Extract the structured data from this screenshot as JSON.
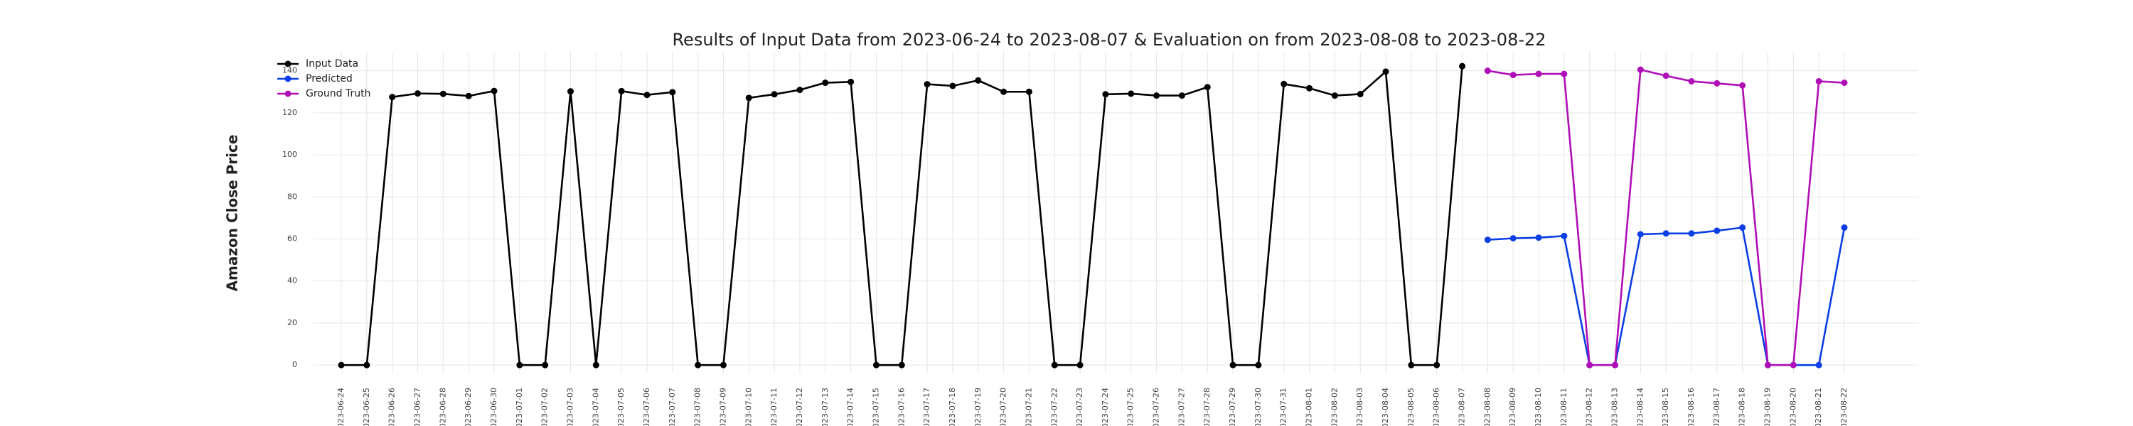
{
  "chart_data": {
    "type": "line",
    "title": "Results of Input Data from 2023-06-24 to 2023-08-07 & Evaluation on from 2023-08-08 to 2023-08-22",
    "y_label": "Amazon Close Price",
    "categories": [
      "2023-06-24",
      "2023-06-25",
      "2023-06-26",
      "2023-06-27",
      "2023-06-28",
      "2023-06-29",
      "2023-06-30",
      "2023-07-01",
      "2023-07-02",
      "2023-07-03",
      "2023-07-04",
      "2023-07-05",
      "2023-07-06",
      "2023-07-07",
      "2023-07-08",
      "2023-07-09",
      "2023-07-10",
      "2023-07-11",
      "2023-07-12",
      "2023-07-13",
      "2023-07-14",
      "2023-07-15",
      "2023-07-16",
      "2023-07-17",
      "2023-07-18",
      "2023-07-19",
      "2023-07-20",
      "2023-07-21",
      "2023-07-22",
      "2023-07-23",
      "2023-07-24",
      "2023-07-25",
      "2023-07-26",
      "2023-07-27",
      "2023-07-28",
      "2023-07-29",
      "2023-07-30",
      "2023-07-31",
      "2023-08-01",
      "2023-08-02",
      "2023-08-03",
      "2023-08-04",
      "2023-08-05",
      "2023-08-06",
      "2023-08-07",
      "2023-08-08",
      "2023-08-09",
      "2023-08-10",
      "2023-08-11",
      "2023-08-12",
      "2023-08-13",
      "2023-08-14",
      "2023-08-15",
      "2023-08-16",
      "2023-08-17",
      "2023-08-18",
      "2023-08-19",
      "2023-08-20",
      "2023-08-21",
      "2023-08-22"
    ],
    "series": [
      {
        "name": "Input Data",
        "color": "#000000",
        "values": [
          0,
          0,
          127.5,
          129.2,
          129.0,
          128.0,
          130.4,
          0,
          0,
          130.2,
          0,
          130.3,
          128.5,
          129.8,
          0,
          0,
          127.1,
          128.8,
          130.9,
          134.3,
          134.7,
          0,
          0,
          133.6,
          132.8,
          135.4,
          130.0,
          130.0,
          0,
          0,
          128.8,
          129.1,
          128.2,
          128.2,
          132.2,
          0,
          0,
          133.7,
          131.7,
          128.2,
          128.9,
          139.6,
          0,
          0,
          142.2,
          null,
          null,
          null,
          null,
          null,
          null,
          null,
          null,
          null,
          null,
          null,
          null,
          null,
          null,
          null
        ]
      },
      {
        "name": "Predicted",
        "color": "#0b3ee6",
        "values": [
          null,
          null,
          null,
          null,
          null,
          null,
          null,
          null,
          null,
          null,
          null,
          null,
          null,
          null,
          null,
          null,
          null,
          null,
          null,
          null,
          null,
          null,
          null,
          null,
          null,
          null,
          null,
          null,
          null,
          null,
          null,
          null,
          null,
          null,
          null,
          null,
          null,
          null,
          null,
          null,
          null,
          null,
          null,
          null,
          null,
          59.6,
          60.3,
          60.6,
          61.4,
          0,
          0,
          62.2,
          62.6,
          62.6,
          63.9,
          65.4,
          0,
          0,
          0,
          65.4
        ]
      },
      {
        "name": "Ground Truth",
        "color": "#b00fb8",
        "values": [
          null,
          null,
          null,
          null,
          null,
          null,
          null,
          null,
          null,
          null,
          null,
          null,
          null,
          null,
          null,
          null,
          null,
          null,
          null,
          null,
          null,
          null,
          null,
          null,
          null,
          null,
          null,
          null,
          null,
          null,
          null,
          null,
          null,
          null,
          null,
          null,
          null,
          null,
          null,
          null,
          null,
          null,
          null,
          null,
          null,
          140.0,
          138.0,
          138.5,
          138.5,
          0,
          0,
          140.5,
          137.6,
          135.0,
          134.0,
          133.0,
          0,
          0,
          135.0,
          134.3
        ]
      }
    ],
    "ylim": [
      -4,
      149
    ],
    "yticks": [
      0,
      20,
      40,
      60,
      80,
      100,
      120,
      140
    ],
    "grid": true,
    "legend": "upper left"
  }
}
